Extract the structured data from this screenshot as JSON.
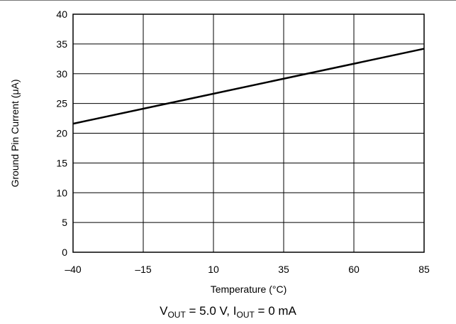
{
  "chart_data": {
    "type": "line",
    "title": "",
    "xlabel": "Temperature (°C)",
    "ylabel": "Ground Pin Current (μA)",
    "xlim": [
      -40,
      85
    ],
    "ylim": [
      0,
      40
    ],
    "x_ticks": [
      -40,
      -15,
      10,
      35,
      60,
      85
    ],
    "x_tick_labels": [
      "–40",
      "–15",
      "10",
      "35",
      "60",
      "85"
    ],
    "y_ticks": [
      0,
      5,
      10,
      15,
      20,
      25,
      30,
      35,
      40
    ],
    "y_tick_labels": [
      "0",
      "5",
      "10",
      "15",
      "20",
      "25",
      "30",
      "35",
      "40"
    ],
    "grid": true,
    "series": [
      {
        "x": [
          -40,
          85
        ],
        "y": [
          21.6,
          34.2
        ]
      }
    ]
  },
  "caption": {
    "v_main": "V",
    "v_sub": "OUT",
    "v_value": " = 5.0 V, ",
    "i_main": "I",
    "i_sub": "OUT",
    "i_value": " = 0 mA"
  }
}
